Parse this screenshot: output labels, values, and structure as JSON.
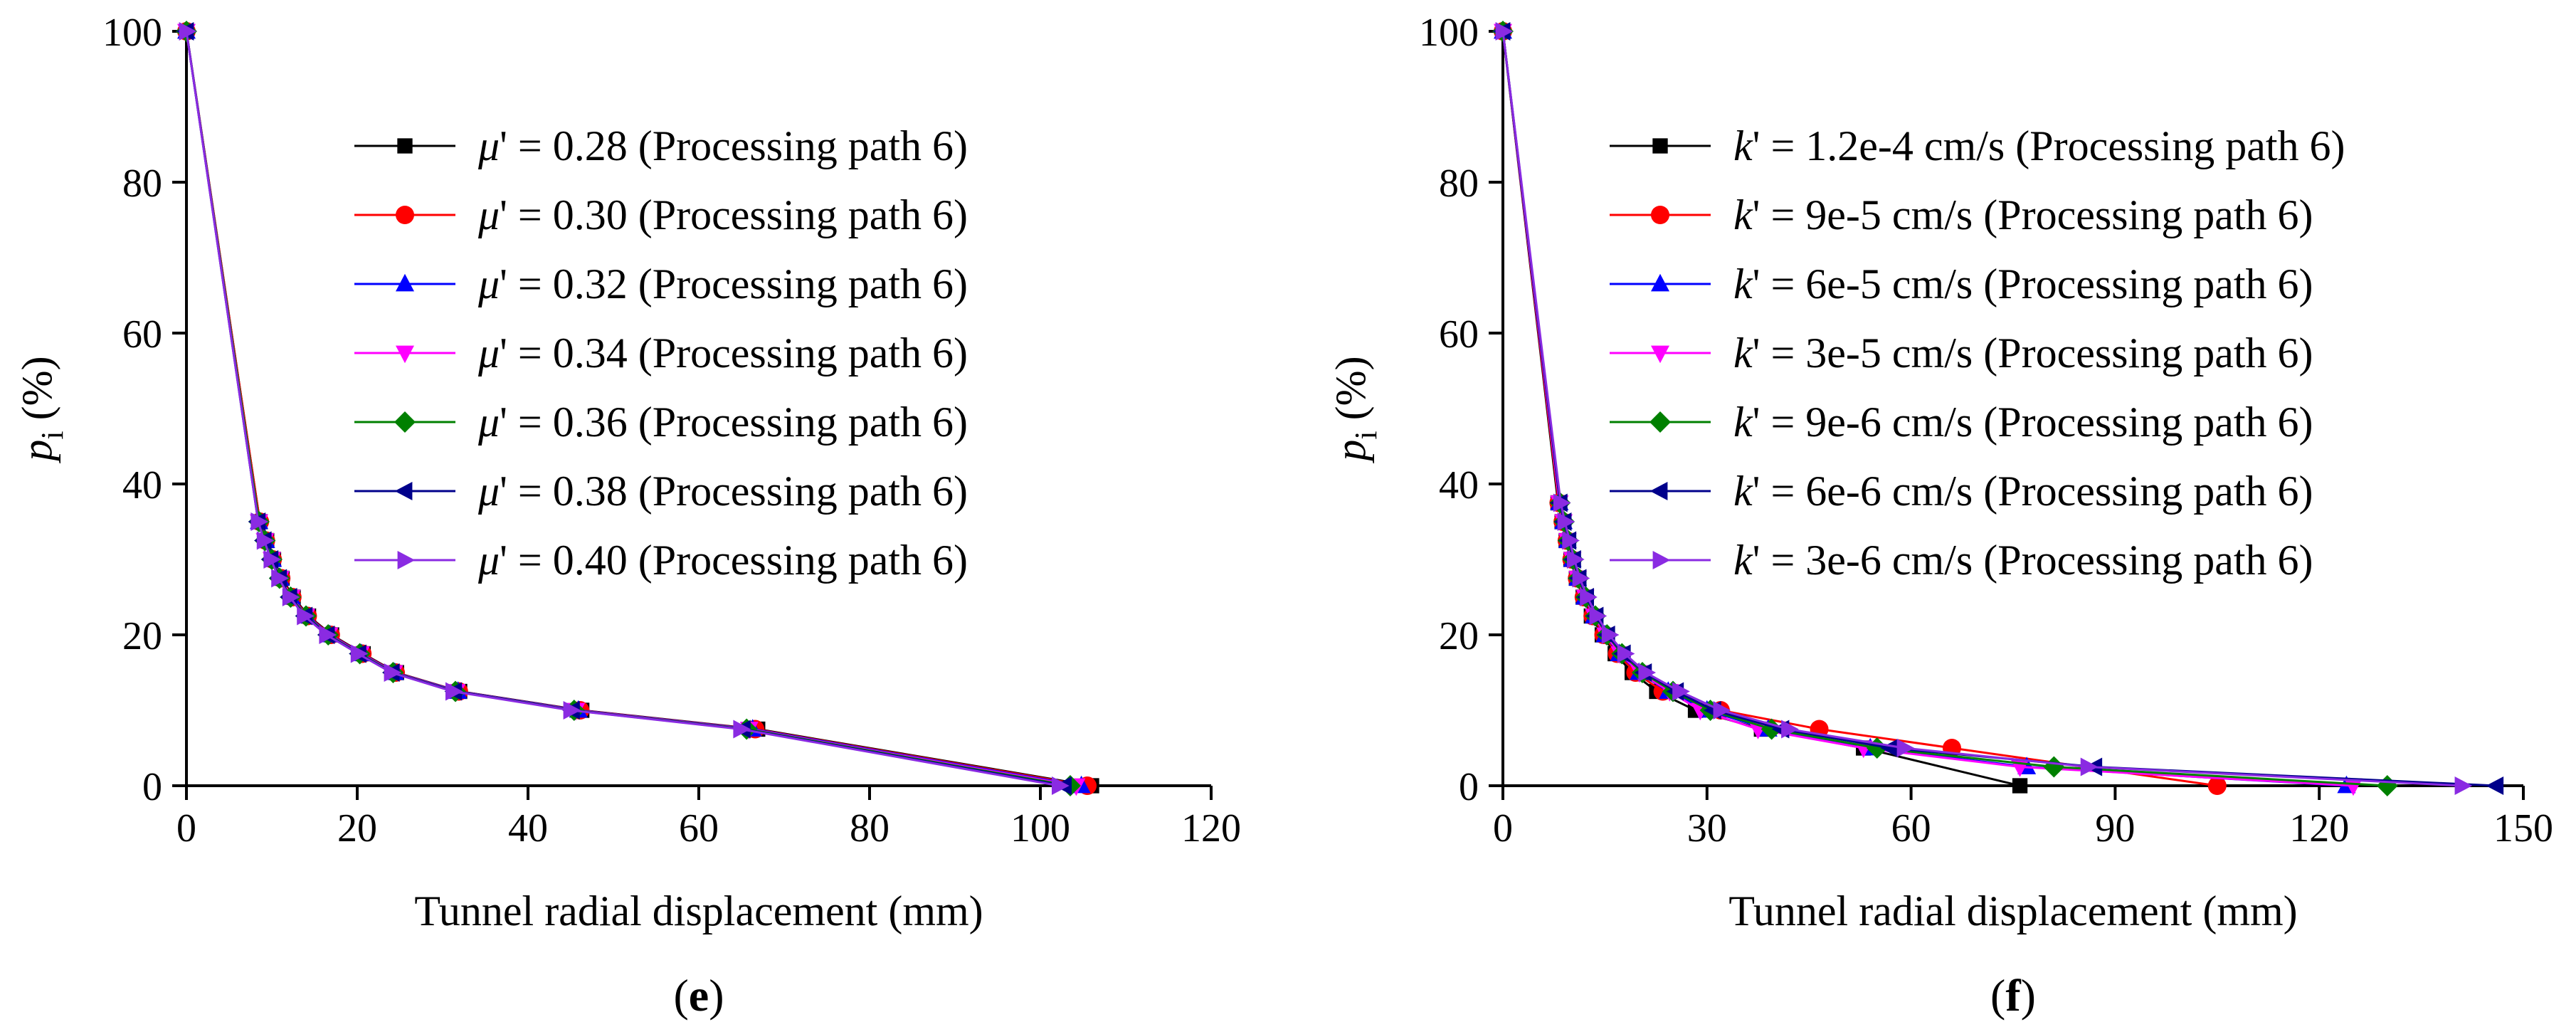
{
  "figure": {
    "panels": [
      "e",
      "f"
    ]
  },
  "chart_data": [
    {
      "type": "line",
      "panel_label": {
        "open": "(",
        "letter": "e",
        "close": ")"
      },
      "xlabel": "Tunnel radial displacement (mm)",
      "ylabel": {
        "main": "p",
        "sub": "i",
        "unit": " (%)"
      },
      "xlim": [
        0,
        120
      ],
      "ylim": [
        0,
        100
      ],
      "xticks": [
        0,
        20,
        40,
        60,
        80,
        100,
        120
      ],
      "yticks": [
        0,
        20,
        40,
        60,
        80,
        100
      ],
      "grid": false,
      "legend_position": "top-right",
      "series": [
        {
          "symbol": "μ",
          "value": "0.28",
          "path": "(Processing path 6)",
          "color": "#000000",
          "marker": "square",
          "x": [
            0,
            8.6,
            9.4,
            10.2,
            11.2,
            12.5,
            14.3,
            17.0,
            20.7,
            24.6,
            32.0,
            46.3,
            66.9,
            106.0
          ],
          "y": [
            100,
            35,
            32.5,
            30,
            27.5,
            25,
            22.5,
            20,
            17.5,
            15,
            12.5,
            10,
            7.5,
            0
          ]
        },
        {
          "symbol": "μ",
          "value": "0.30",
          "path": "(Processing path 6)",
          "color": "#ff0000",
          "marker": "circle",
          "x": [
            0,
            8.6,
            9.3,
            10.1,
            11.1,
            12.4,
            14.2,
            16.9,
            20.6,
            24.5,
            31.9,
            46.1,
            66.6,
            105.5
          ],
          "y": [
            100,
            35,
            32.5,
            30,
            27.5,
            25,
            22.5,
            20,
            17.5,
            15,
            12.5,
            10,
            7.5,
            0
          ]
        },
        {
          "symbol": "μ",
          "value": "0.32",
          "path": "(Processing path 6)",
          "color": "#0000ff",
          "marker": "triangle-up",
          "x": [
            0,
            8.5,
            9.3,
            10.1,
            11.0,
            12.3,
            14.1,
            16.8,
            20.5,
            24.4,
            31.8,
            45.9,
            66.3,
            104.8
          ],
          "y": [
            100,
            35,
            32.5,
            30,
            27.5,
            25,
            22.5,
            20,
            17.5,
            15,
            12.5,
            10,
            7.5,
            0
          ]
        },
        {
          "symbol": "μ",
          "value": "0.34",
          "path": "(Processing path 6)",
          "color": "#ff00ff",
          "marker": "triangle-down",
          "x": [
            0,
            8.5,
            9.2,
            10.0,
            11.0,
            12.3,
            14.0,
            16.7,
            20.4,
            24.3,
            31.6,
            45.6,
            65.9,
            104.2
          ],
          "y": [
            100,
            35,
            32.5,
            30,
            27.5,
            25,
            22.5,
            20,
            17.5,
            15,
            12.5,
            10,
            7.5,
            0
          ]
        },
        {
          "symbol": "μ",
          "value": "0.36",
          "path": "(Processing path 6)",
          "color": "#008000",
          "marker": "diamond",
          "x": [
            0,
            8.5,
            9.2,
            10.0,
            10.9,
            12.2,
            14.0,
            16.6,
            20.3,
            24.2,
            31.5,
            45.4,
            65.6,
            103.5
          ],
          "y": [
            100,
            35,
            32.5,
            30,
            27.5,
            25,
            22.5,
            20,
            17.5,
            15,
            12.5,
            10,
            7.5,
            0
          ]
        },
        {
          "symbol": "μ",
          "value": "0.38",
          "path": "(Processing path 6)",
          "color": "#00008b",
          "marker": "triangle-left",
          "x": [
            0,
            8.4,
            9.1,
            9.9,
            10.9,
            12.1,
            13.9,
            16.5,
            20.2,
            24.1,
            31.4,
            45.2,
            65.2,
            102.8
          ],
          "y": [
            100,
            35,
            32.5,
            30,
            27.5,
            25,
            22.5,
            20,
            17.5,
            15,
            12.5,
            10,
            7.5,
            0
          ]
        },
        {
          "symbol": "μ",
          "value": "0.40",
          "path": "(Processing path 6)",
          "color": "#8a2be2",
          "marker": "triangle-right",
          "x": [
            0,
            8.4,
            9.1,
            9.9,
            10.8,
            12.1,
            13.8,
            16.4,
            20.1,
            24.0,
            31.2,
            45.0,
            64.9,
            102.2
          ],
          "y": [
            100,
            35,
            32.5,
            30,
            27.5,
            25,
            22.5,
            20,
            17.5,
            15,
            12.5,
            10,
            7.5,
            0
          ]
        }
      ]
    },
    {
      "type": "line",
      "panel_label": {
        "open": "(",
        "letter": "f",
        "close": ")"
      },
      "xlabel": "Tunnel radial displacement (mm)",
      "ylabel": {
        "main": "p",
        "sub": "i",
        "unit": " (%)"
      },
      "xlim": [
        0,
        150
      ],
      "ylim": [
        0,
        100
      ],
      "xticks": [
        0,
        30,
        60,
        90,
        120,
        150
      ],
      "yticks": [
        0,
        20,
        40,
        60,
        80,
        100
      ],
      "grid": false,
      "legend_position": "top-right",
      "series": [
        {
          "symbol": "k",
          "value": "1.2e-4 cm/s",
          "path": "(Processing path 6)",
          "color": "#000000",
          "marker": "square",
          "x": [
            0,
            8.1,
            8.7,
            9.3,
            10.0,
            10.8,
            11.8,
            13.0,
            14.6,
            16.5,
            19.0,
            22.6,
            28.3,
            38.0,
            53.0,
            76.0
          ],
          "y": [
            100,
            37.5,
            35,
            32.5,
            30,
            27.5,
            25,
            22.5,
            20,
            17.5,
            15,
            12.5,
            10,
            7.5,
            5,
            0
          ]
        },
        {
          "symbol": "k",
          "value": "9e-5 cm/s",
          "path": "(Processing path 6)",
          "color": "#ff0000",
          "marker": "circle",
          "x": [
            0,
            8.2,
            8.8,
            9.4,
            10.1,
            10.9,
            11.9,
            13.2,
            14.8,
            16.8,
            19.5,
            23.5,
            32.0,
            46.5,
            66.0,
            105.0
          ],
          "y": [
            100,
            37.5,
            35,
            32.5,
            30,
            27.5,
            25,
            22.5,
            20,
            17.5,
            15,
            12.5,
            10,
            7.5,
            5,
            0
          ]
        },
        {
          "symbol": "k",
          "value": "6e-5 cm/s",
          "path": "(Processing path 6)",
          "color": "#0000ff",
          "marker": "triangle-up",
          "x": [
            0,
            8.3,
            8.9,
            9.5,
            10.2,
            11.0,
            12.0,
            13.4,
            15.0,
            17.1,
            20.0,
            24.3,
            30.0,
            39.0,
            54.0,
            77.0,
            124.0
          ],
          "y": [
            100,
            37.5,
            35,
            32.5,
            30,
            27.5,
            25,
            22.5,
            20,
            17.5,
            15,
            12.5,
            10,
            7.5,
            5,
            2.5,
            0
          ]
        },
        {
          "symbol": "k",
          "value": "3e-5 cm/s",
          "path": "(Processing path 6)",
          "color": "#ff00ff",
          "marker": "triangle-down",
          "x": [
            0,
            8.3,
            8.9,
            9.5,
            10.2,
            11.0,
            12.1,
            13.4,
            15.1,
            17.2,
            20.1,
            24.5,
            29.0,
            37.5,
            53.0,
            76.0,
            125.0
          ],
          "y": [
            100,
            37.5,
            35,
            32.5,
            30,
            27.5,
            25,
            22.5,
            20,
            17.5,
            15,
            12.5,
            10,
            7.5,
            5,
            2.5,
            0
          ]
        },
        {
          "symbol": "k",
          "value": "9e-6 cm/s",
          "path": "(Processing path 6)",
          "color": "#008000",
          "marker": "diamond",
          "x": [
            0,
            8.4,
            9.0,
            9.6,
            10.3,
            11.1,
            12.2,
            13.6,
            15.3,
            17.5,
            20.5,
            25.0,
            30.5,
            39.5,
            55.0,
            81.0,
            130.0
          ],
          "y": [
            100,
            37.5,
            35,
            32.5,
            30,
            27.5,
            25,
            22.5,
            20,
            17.5,
            15,
            12.5,
            10,
            7.5,
            5,
            2.5,
            0
          ]
        },
        {
          "symbol": "k",
          "value": "6e-6 cm/s",
          "path": "(Processing path 6)",
          "color": "#00008b",
          "marker": "triangle-left",
          "x": [
            0,
            8.4,
            9.0,
            9.7,
            10.4,
            11.2,
            12.3,
            13.7,
            15.4,
            17.7,
            20.8,
            25.5,
            31.0,
            41.0,
            57.0,
            87.0,
            146.0
          ],
          "y": [
            100,
            37.5,
            35,
            32.5,
            30,
            27.5,
            25,
            22.5,
            20,
            17.5,
            15,
            12.5,
            10,
            7.5,
            5,
            2.5,
            0
          ]
        },
        {
          "symbol": "k",
          "value": "3e-6 cm/s",
          "path": "(Processing path 6)",
          "color": "#8a2be2",
          "marker": "triangle-right",
          "x": [
            0,
            8.5,
            9.1,
            9.8,
            10.5,
            11.3,
            12.4,
            13.8,
            15.6,
            17.9,
            21.0,
            26.0,
            32.0,
            42.0,
            59.0,
            86.0,
            141.0
          ],
          "y": [
            100,
            37.5,
            35,
            32.5,
            30,
            27.5,
            25,
            22.5,
            20,
            17.5,
            15,
            12.5,
            10,
            7.5,
            5,
            2.5,
            0
          ]
        }
      ]
    }
  ]
}
